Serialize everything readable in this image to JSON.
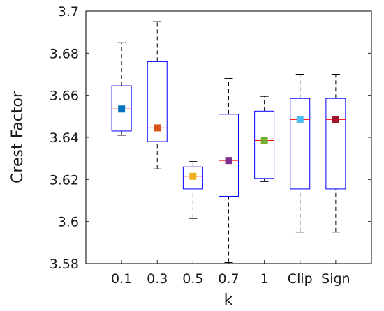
{
  "chart_data": {
    "type": "box",
    "title": "",
    "xlabel": "k",
    "ylabel": "Crest Factor",
    "ylim": [
      3.58,
      3.7
    ],
    "yticks": [
      3.58,
      3.6,
      3.62,
      3.64,
      3.66,
      3.68,
      3.7
    ],
    "ytick_labels": [
      "3.58",
      "3.6",
      "3.62",
      "3.64",
      "3.66",
      "3.68",
      "3.7"
    ],
    "grid": false,
    "categories": [
      "0.1",
      "0.3",
      "0.5",
      "0.7",
      "1",
      "Clip",
      "Sign"
    ],
    "boxes": [
      {
        "label": "0.1",
        "min": 3.641,
        "q1": 3.643,
        "median": 3.6535,
        "q3": 3.6645,
        "max": 3.685,
        "mean": 3.6535,
        "mean_color": "#0072BD"
      },
      {
        "label": "0.3",
        "min": 3.625,
        "q1": 3.638,
        "median": 3.6445,
        "q3": 3.676,
        "max": 3.695,
        "mean": 3.6445,
        "mean_color": "#D95319"
      },
      {
        "label": "0.5",
        "min": 3.6015,
        "q1": 3.6155,
        "median": 3.6215,
        "q3": 3.626,
        "max": 3.6285,
        "mean": 3.6215,
        "mean_color": "#EDB120"
      },
      {
        "label": "0.7",
        "min": 3.5805,
        "q1": 3.612,
        "median": 3.629,
        "q3": 3.651,
        "max": 3.668,
        "mean": 3.629,
        "mean_color": "#7E2F8E"
      },
      {
        "label": "1",
        "min": 3.619,
        "q1": 3.6205,
        "median": 3.6385,
        "q3": 3.6525,
        "max": 3.6595,
        "mean": 3.6385,
        "mean_color": "#77AC30"
      },
      {
        "label": "Clip",
        "min": 3.595,
        "q1": 3.6155,
        "median": 3.6485,
        "q3": 3.6585,
        "max": 3.67,
        "mean": 3.6485,
        "mean_color": "#4DBEEE"
      },
      {
        "label": "Sign",
        "min": 3.595,
        "q1": 3.6155,
        "median": 3.6485,
        "q3": 3.6585,
        "max": 3.67,
        "mean": 3.6485,
        "mean_color": "#A2142F"
      }
    ],
    "box_color": "#0000FF",
    "median_color": "#FF0000",
    "whisker_color": "#000000"
  }
}
